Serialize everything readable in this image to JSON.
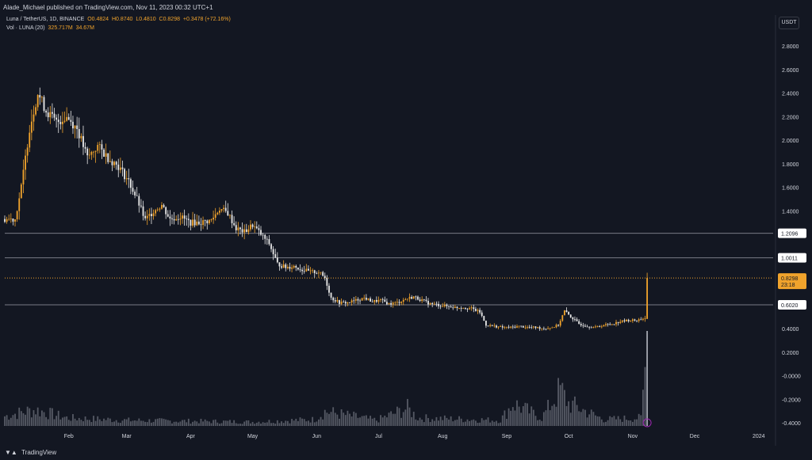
{
  "header": {
    "published_text": "Alade_Michael published on TradingView.com, Nov 11, 2023 00:32 UTC+1"
  },
  "legend": {
    "symbol": "Luna / TetherUS, 1D, BINANCE",
    "open": "O0.4824",
    "high": "H0.8740",
    "low": "L0.4810",
    "close": "C0.8298",
    "change": "+0.3478 (+72.16%)",
    "vol_label": "Vol · LUNA (20)",
    "vol_value": "325.717M",
    "vol_ma": "34.67M"
  },
  "currency_button": "USDT",
  "footer": {
    "brand": "TradingView"
  },
  "colors": {
    "background": "#131722",
    "up": "#f0a32c",
    "down": "#e8e8e8",
    "hline": "#787b86",
    "price_line": "#f0a32c",
    "axis_text": "#d1d4dc"
  },
  "chart_data": {
    "type": "candlestick",
    "symbol": "Luna / TetherUS",
    "timeframe": "1D",
    "exchange": "BINANCE",
    "y_axis": {
      "min": -0.4,
      "max": 2.8,
      "ticks": [
        "2.8000",
        "2.6000",
        "2.4000",
        "2.2000",
        "2.0000",
        "1.8000",
        "1.6000",
        "1.4000",
        "1.2000",
        "1.0000",
        "0.8000",
        "0.6000",
        "0.4000",
        "0.2000",
        "-0.0000",
        "-0.2000",
        "-0.4000"
      ]
    },
    "x_axis": {
      "ticks": [
        {
          "label": "Feb",
          "day": 31
        },
        {
          "label": "Mar",
          "day": 59
        },
        {
          "label": "Apr",
          "day": 90
        },
        {
          "label": "May",
          "day": 120
        },
        {
          "label": "Jun",
          "day": 151
        },
        {
          "label": "Jul",
          "day": 181
        },
        {
          "label": "Aug",
          "day": 212
        },
        {
          "label": "Sep",
          "day": 243
        },
        {
          "label": "Oct",
          "day": 273
        },
        {
          "label": "Nov",
          "day": 304
        },
        {
          "label": "Dec",
          "day": 334
        },
        {
          "label": "2024",
          "day": 365
        }
      ],
      "range_days": [
        0,
        372
      ]
    },
    "horizontal_levels": [
      {
        "label": "1.2096",
        "value": 1.2096
      },
      {
        "label": "1.0011",
        "value": 1.0011
      },
      {
        "label": "0.6020",
        "value": 0.602
      }
    ],
    "last_price": {
      "label": "0.8298",
      "value": 0.8298,
      "countdown": "23:18"
    },
    "price_path": [
      {
        "day": 0,
        "price": 1.33
      },
      {
        "day": 5,
        "price": 1.33
      },
      {
        "day": 8,
        "price": 1.6
      },
      {
        "day": 12,
        "price": 2.1
      },
      {
        "day": 16,
        "price": 2.4
      },
      {
        "day": 20,
        "price": 2.25
      },
      {
        "day": 25,
        "price": 2.15
      },
      {
        "day": 30,
        "price": 2.2
      },
      {
        "day": 35,
        "price": 2.1
      },
      {
        "day": 40,
        "price": 1.85
      },
      {
        "day": 45,
        "price": 1.95
      },
      {
        "day": 50,
        "price": 1.85
      },
      {
        "day": 55,
        "price": 1.78
      },
      {
        "day": 60,
        "price": 1.65
      },
      {
        "day": 64,
        "price": 1.5
      },
      {
        "day": 68,
        "price": 1.32
      },
      {
        "day": 72,
        "price": 1.4
      },
      {
        "day": 76,
        "price": 1.45
      },
      {
        "day": 80,
        "price": 1.33
      },
      {
        "day": 85,
        "price": 1.35
      },
      {
        "day": 90,
        "price": 1.3
      },
      {
        "day": 95,
        "price": 1.3
      },
      {
        "day": 100,
        "price": 1.32
      },
      {
        "day": 104,
        "price": 1.42
      },
      {
        "day": 108,
        "price": 1.38
      },
      {
        "day": 112,
        "price": 1.25
      },
      {
        "day": 116,
        "price": 1.22
      },
      {
        "day": 120,
        "price": 1.28
      },
      {
        "day": 124,
        "price": 1.2
      },
      {
        "day": 128,
        "price": 1.12
      },
      {
        "day": 132,
        "price": 0.95
      },
      {
        "day": 136,
        "price": 0.92
      },
      {
        "day": 140,
        "price": 0.93
      },
      {
        "day": 144,
        "price": 0.9
      },
      {
        "day": 148,
        "price": 0.88
      },
      {
        "day": 152,
        "price": 0.88
      },
      {
        "day": 155,
        "price": 0.83
      },
      {
        "day": 158,
        "price": 0.66
      },
      {
        "day": 162,
        "price": 0.62
      },
      {
        "day": 166,
        "price": 0.62
      },
      {
        "day": 170,
        "price": 0.64
      },
      {
        "day": 174,
        "price": 0.66
      },
      {
        "day": 178,
        "price": 0.63
      },
      {
        "day": 182,
        "price": 0.64
      },
      {
        "day": 186,
        "price": 0.61
      },
      {
        "day": 190,
        "price": 0.62
      },
      {
        "day": 194,
        "price": 0.65
      },
      {
        "day": 198,
        "price": 0.67
      },
      {
        "day": 202,
        "price": 0.64
      },
      {
        "day": 206,
        "price": 0.61
      },
      {
        "day": 210,
        "price": 0.6
      },
      {
        "day": 214,
        "price": 0.59
      },
      {
        "day": 218,
        "price": 0.58
      },
      {
        "day": 222,
        "price": 0.58
      },
      {
        "day": 226,
        "price": 0.57
      },
      {
        "day": 230,
        "price": 0.54
      },
      {
        "day": 233,
        "price": 0.43
      },
      {
        "day": 237,
        "price": 0.42
      },
      {
        "day": 241,
        "price": 0.41
      },
      {
        "day": 245,
        "price": 0.41
      },
      {
        "day": 249,
        "price": 0.42
      },
      {
        "day": 253,
        "price": 0.41
      },
      {
        "day": 257,
        "price": 0.41
      },
      {
        "day": 261,
        "price": 0.4
      },
      {
        "day": 265,
        "price": 0.41
      },
      {
        "day": 268,
        "price": 0.43
      },
      {
        "day": 271,
        "price": 0.55
      },
      {
        "day": 274,
        "price": 0.5
      },
      {
        "day": 278,
        "price": 0.44
      },
      {
        "day": 282,
        "price": 0.42
      },
      {
        "day": 286,
        "price": 0.41
      },
      {
        "day": 290,
        "price": 0.43
      },
      {
        "day": 294,
        "price": 0.44
      },
      {
        "day": 298,
        "price": 0.46
      },
      {
        "day": 302,
        "price": 0.47
      },
      {
        "day": 306,
        "price": 0.47
      },
      {
        "day": 308,
        "price": 0.48
      },
      {
        "day": 310,
        "price": 0.49
      },
      {
        "day": 311,
        "price": 0.83
      }
    ],
    "volume_path": [
      {
        "day": 0,
        "v": 0.12
      },
      {
        "day": 10,
        "v": 0.18
      },
      {
        "day": 15,
        "v": 0.2
      },
      {
        "day": 30,
        "v": 0.1
      },
      {
        "day": 60,
        "v": 0.07
      },
      {
        "day": 90,
        "v": 0.06
      },
      {
        "day": 120,
        "v": 0.05
      },
      {
        "day": 150,
        "v": 0.08
      },
      {
        "day": 155,
        "v": 0.18
      },
      {
        "day": 180,
        "v": 0.07
      },
      {
        "day": 195,
        "v": 0.22
      },
      {
        "day": 200,
        "v": 0.1
      },
      {
        "day": 240,
        "v": 0.07
      },
      {
        "day": 246,
        "v": 0.28
      },
      {
        "day": 260,
        "v": 0.1
      },
      {
        "day": 269,
        "v": 0.45
      },
      {
        "day": 273,
        "v": 0.28
      },
      {
        "day": 290,
        "v": 0.08
      },
      {
        "day": 308,
        "v": 0.1
      },
      {
        "day": 311,
        "v": 1.0
      }
    ]
  }
}
